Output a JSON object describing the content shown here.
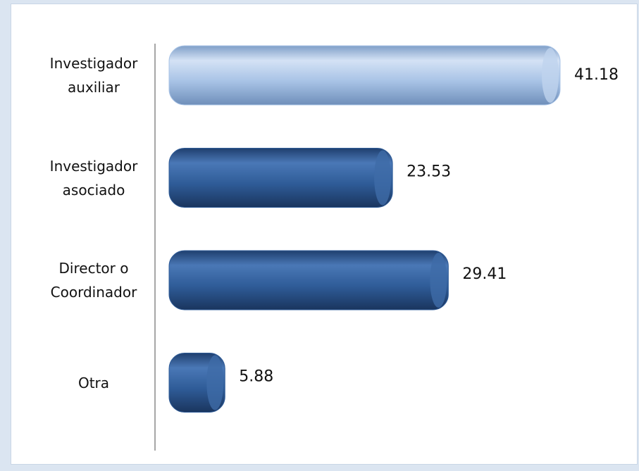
{
  "chart_data": {
    "type": "bar",
    "orientation": "horizontal",
    "categories": [
      "Investigador auxiliar",
      "Investigador asociado",
      "Director o Coordinador",
      "Otra"
    ],
    "values": [
      41.18,
      23.53,
      29.41,
      5.88
    ],
    "colors": [
      "#a8c3e6",
      "#2f5c98",
      "#2f5c98",
      "#2f5c98"
    ]
  }
}
